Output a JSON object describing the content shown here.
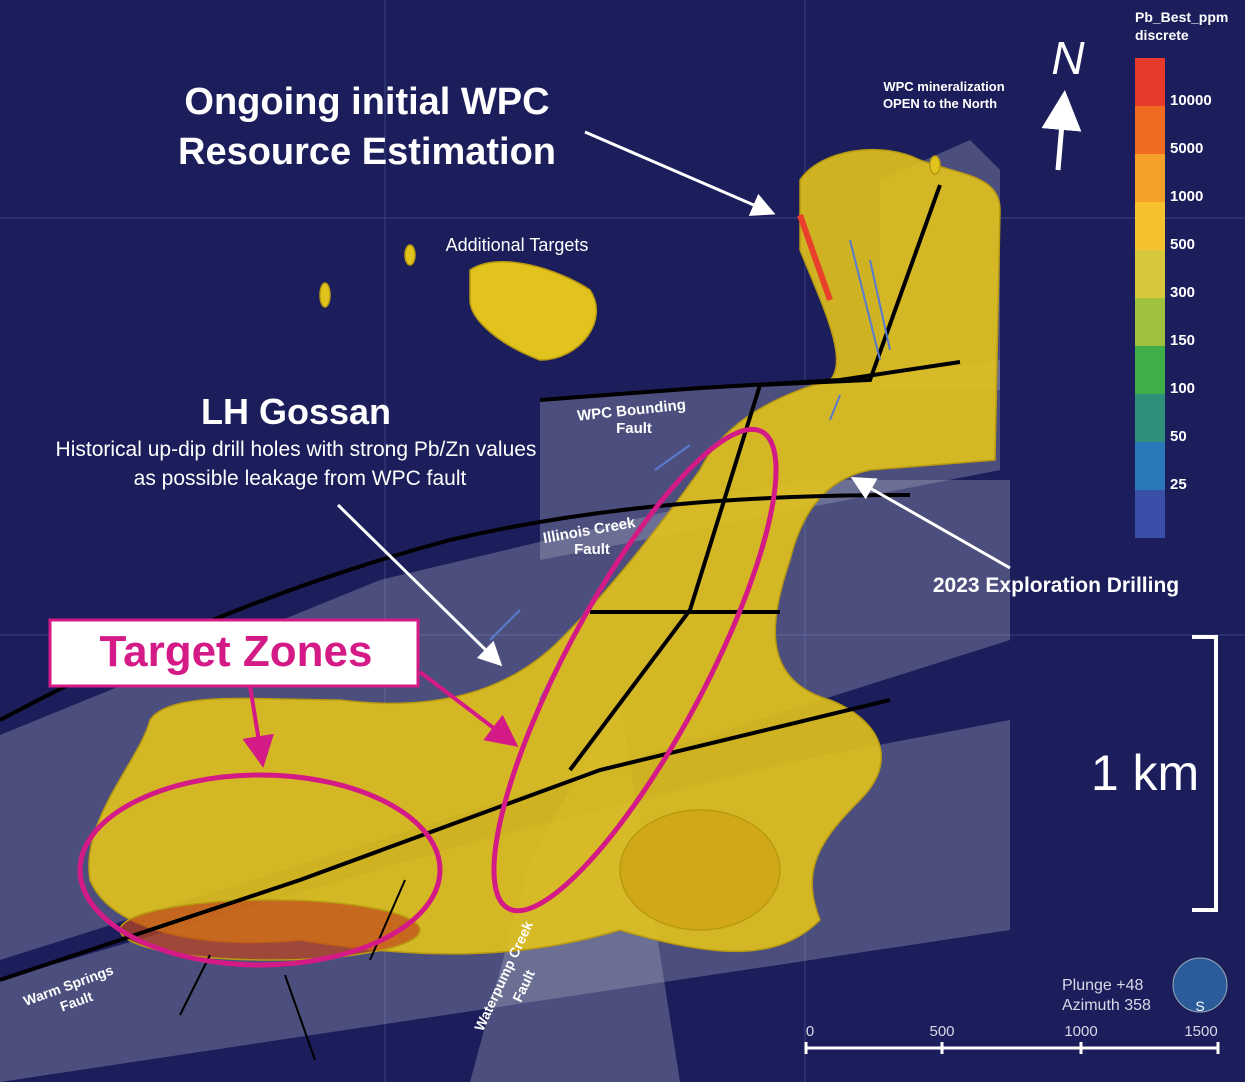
{
  "header": {
    "title_lines": [
      "Ongoing initial WPC",
      "Resource Estimation"
    ]
  },
  "labels": {
    "additional_targets": "Additional Targets",
    "north_note": [
      "WPC mineralization",
      "OPEN to the North"
    ],
    "north": "N",
    "lh_gossan": "LH Gossan",
    "lh_note": [
      "Historical up-dip drill holes with strong Pb/Zn values",
      "as possible leakage from WPC fault"
    ],
    "wpc_fault": [
      "WPC Bounding",
      "Fault"
    ],
    "illinois_fault": [
      "Illinois Creek",
      "Fault"
    ],
    "drilling": "2023 Exploration Drilling",
    "target_zones": "Target Zones",
    "scale_text": "1 km",
    "warm_springs_fault": [
      "Warm Springs",
      "Fault"
    ],
    "waterpump_fault": [
      "Waterpump Creek",
      "Fault"
    ],
    "view": [
      "Plunge +48",
      "Azimuth 358"
    ],
    "globe": "S"
  },
  "legend": {
    "title": [
      "Pb_Best_ppm",
      "discrete"
    ],
    "colors": [
      "#e83a2a",
      "#f06a22",
      "#f5a028",
      "#f5c12e",
      "#d6c83a",
      "#9ec13e",
      "#3fae4a",
      "#2f8f7a",
      "#2a78b8",
      "#3a4fa8"
    ],
    "labels": [
      "10000",
      "5000",
      "1000",
      "500",
      "300",
      "150",
      "100",
      "50",
      "25"
    ]
  },
  "scale_bar": {
    "labels": [
      "0",
      "500",
      "1000",
      "1500"
    ]
  }
}
